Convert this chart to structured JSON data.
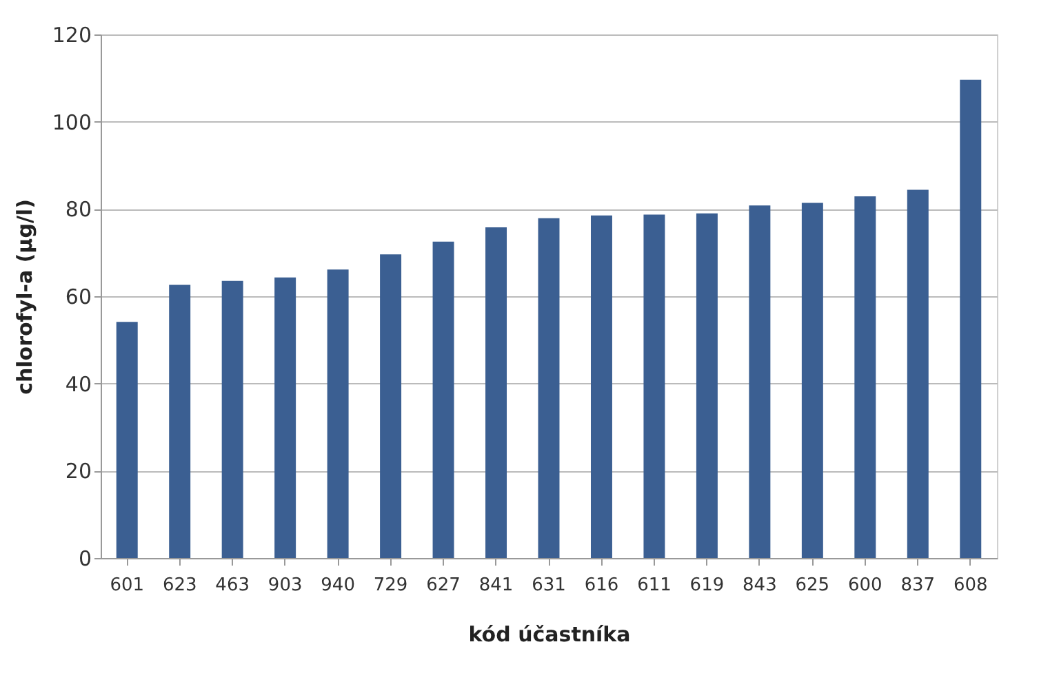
{
  "chart_data": {
    "type": "bar",
    "xlabel": "kód účastníka",
    "ylabel": "chlorofyl-a (µg/l)",
    "categories": [
      "601",
      "623",
      "463",
      "903",
      "940",
      "729",
      "627",
      "841",
      "631",
      "616",
      "611",
      "619",
      "843",
      "625",
      "600",
      "837",
      "608"
    ],
    "values": [
      54.1,
      62.6,
      63.5,
      64.3,
      66.1,
      69.6,
      72.5,
      75.8,
      77.9,
      78.5,
      78.7,
      79.0,
      80.8,
      81.4,
      82.9,
      84.4,
      109.6
    ],
    "color": "#3b5f92",
    "ylim": [
      0,
      120
    ],
    "yticks": [
      0,
      20,
      40,
      60,
      80,
      100,
      120
    ],
    "grid": "y"
  }
}
